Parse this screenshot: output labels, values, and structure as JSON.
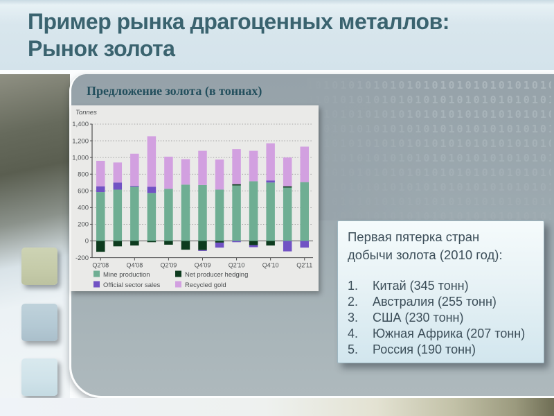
{
  "slide": {
    "title_line1": "Пример рынка драгоценных металлов:",
    "title_line2": "Рынок золота"
  },
  "chart_section": {
    "heading": "Предложение золота (в тоннах)"
  },
  "info_box": {
    "title_line1": "Первая пятерка стран",
    "title_line2": "добычи золота (2010 год):",
    "items": [
      "Китай (345 тонн)",
      "Австралия (255 тонн)",
      "США (230 тонн)",
      "Южная Африка (207 тонн)",
      "Россия (190 тонн)"
    ]
  },
  "background": {
    "binary_pattern": "1010101010101010101010101010"
  },
  "chart_data": {
    "type": "bar",
    "stacked": true,
    "title": "",
    "unit_label": "Tonnes",
    "categories": [
      "Q2'08",
      "Q3'08",
      "Q4'08",
      "Q1'09",
      "Q2'09",
      "Q3'09",
      "Q4'09",
      "Q1'10",
      "Q2'10",
      "Q3'10",
      "Q4'10",
      "Q1'11",
      "Q2'11"
    ],
    "x_tick_labels": [
      "Q2'08",
      "Q4'08",
      "Q2'09",
      "Q4'09",
      "Q2'10",
      "Q4'10",
      "Q2'11"
    ],
    "x_tick_indices": [
      0,
      2,
      4,
      6,
      8,
      10,
      12
    ],
    "series": [
      {
        "name": "Mine production",
        "color": "#6fae93",
        "values": [
          585,
          615,
          650,
          575,
          625,
          675,
          670,
          615,
          665,
          715,
          700,
          640,
          705
        ]
      },
      {
        "name": "Net producer hedging",
        "color": "#0d3b1e",
        "values": [
          -130,
          -65,
          -55,
          -15,
          -45,
          -105,
          -110,
          -20,
          15,
          -50,
          -55,
          15,
          0
        ]
      },
      {
        "name": "Official sector sales",
        "color": "#7152c4",
        "values": [
          70,
          85,
          10,
          75,
          0,
          0,
          -10,
          -60,
          -15,
          -25,
          25,
          -125,
          -80
        ]
      },
      {
        "name": "Recycled gold",
        "color": "#d2a0e0",
        "values": [
          305,
          240,
          385,
          605,
          385,
          305,
          410,
          360,
          420,
          365,
          445,
          345,
          425
        ]
      }
    ],
    "ylim": [
      -200,
      1400
    ],
    "y_ticks": [
      -200,
      0,
      200,
      400,
      600,
      800,
      1000,
      1200,
      1400
    ],
    "grid": true,
    "legend_position": "bottom",
    "legend_rows": [
      [
        "Mine production",
        "Net producer hedging"
      ],
      [
        "Official sector sales",
        "Recycled gold"
      ]
    ]
  }
}
